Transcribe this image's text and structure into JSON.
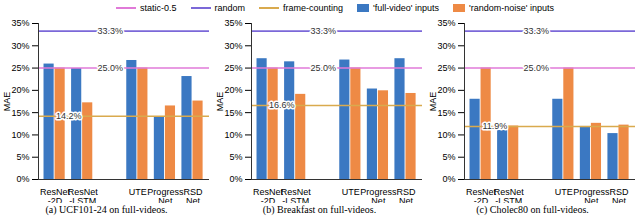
{
  "chart_data": [
    {
      "type": "bar",
      "title": "(a) UCF101-24 on full-videos.",
      "y_label": "MAE",
      "categories": [
        "ResNet\n-2D",
        "ResNet\n-LSTM",
        null,
        "UTE",
        "Progress\nNet",
        "RSD\nNet"
      ],
      "series": [
        {
          "name": "'full-video' inputs",
          "color": "#3b78c2",
          "values": [
            25.9,
            24.9,
            null,
            26.7,
            14.0,
            23.1
          ]
        },
        {
          "name": "'random-noise' inputs",
          "color": "#ee8a45",
          "values": [
            25.0,
            17.2,
            null,
            25.0,
            16.5,
            17.6
          ]
        }
      ],
      "reference_lines": [
        {
          "name": "static-0.5",
          "value": 25.0,
          "value_label": "25.0%",
          "color": "#e07ad8"
        },
        {
          "name": "random",
          "value": 33.3,
          "value_label": "33.3%",
          "color": "#7b68d8"
        },
        {
          "name": "frame-counting",
          "value": 14.2,
          "value_label": "14.2%",
          "color": "#d9aa4e"
        }
      ],
      "ylim": [
        0,
        35
      ],
      "yticks": [
        {
          "value": 0,
          "label": "0%"
        },
        {
          "value": 5,
          "label": "5%"
        },
        {
          "value": 10,
          "label": "10%"
        },
        {
          "value": 15,
          "label": "15%"
        },
        {
          "value": 20,
          "label": "20%"
        },
        {
          "value": 25,
          "label": "25%"
        },
        {
          "value": 30,
          "label": "30%"
        },
        {
          "value": 35,
          "label": "35%"
        }
      ],
      "grid": false,
      "legend": "top"
    },
    {
      "type": "bar",
      "title": "(b) Breakfast on full-videos.",
      "y_label": "MAE",
      "categories": [
        "ResNet\n-2D",
        "ResNet\n-LSTM",
        null,
        "UTE",
        "Progress\nNet",
        "RSD\nNet"
      ],
      "series": [
        {
          "name": "'full-video' inputs",
          "color": "#3b78c2",
          "values": [
            27.1,
            26.4,
            null,
            26.8,
            20.3,
            27.1
          ]
        },
        {
          "name": "'random-noise' inputs",
          "color": "#ee8a45",
          "values": [
            25.0,
            19.1,
            null,
            25.0,
            19.9,
            19.3
          ]
        }
      ],
      "reference_lines": [
        {
          "name": "static-0.5",
          "value": 25.0,
          "value_label": "25.0%",
          "color": "#e07ad8"
        },
        {
          "name": "random",
          "value": 33.3,
          "value_label": "33.3%",
          "color": "#7b68d8"
        },
        {
          "name": "frame-counting",
          "value": 16.6,
          "value_label": "16.6%",
          "color": "#d9aa4e"
        }
      ],
      "ylim": [
        0,
        35
      ],
      "yticks": [
        {
          "value": 0,
          "label": "0%"
        },
        {
          "value": 5,
          "label": "5%"
        },
        {
          "value": 10,
          "label": "10%"
        },
        {
          "value": 15,
          "label": "15%"
        },
        {
          "value": 20,
          "label": "20%"
        },
        {
          "value": 25,
          "label": "25%"
        },
        {
          "value": 30,
          "label": "30%"
        },
        {
          "value": 35,
          "label": "35%"
        }
      ],
      "grid": false,
      "legend": "top"
    },
    {
      "type": "bar",
      "title": "(c) Cholec80 on full-videos.",
      "y_label": "MAE",
      "categories": [
        "ResNet\n-2D",
        "ResNet\n-LSTM",
        null,
        "UTE",
        "Progress\nNet",
        "RSD\nNet"
      ],
      "series": [
        {
          "name": "'full-video' inputs",
          "color": "#3b78c2",
          "values": [
            18.0,
            11.0,
            null,
            18.0,
            11.9,
            10.3
          ]
        },
        {
          "name": "'random-noise' inputs",
          "color": "#ee8a45",
          "values": [
            25.0,
            12.0,
            null,
            25.0,
            12.6,
            12.2
          ]
        }
      ],
      "reference_lines": [
        {
          "name": "static-0.5",
          "value": 25.0,
          "value_label": "25.0%",
          "color": "#e07ad8"
        },
        {
          "name": "random",
          "value": 33.3,
          "value_label": "33.3%",
          "color": "#7b68d8"
        },
        {
          "name": "frame-counting",
          "value": 11.9,
          "value_label": "11.9%",
          "color": "#d9aa4e"
        }
      ],
      "ylim": [
        0,
        35
      ],
      "yticks": [
        {
          "value": 0,
          "label": "0%"
        },
        {
          "value": 5,
          "label": "5%"
        },
        {
          "value": 10,
          "label": "10%"
        },
        {
          "value": 15,
          "label": "15%"
        },
        {
          "value": 20,
          "label": "20%"
        },
        {
          "value": 25,
          "label": "25%"
        },
        {
          "value": 30,
          "label": "30%"
        },
        {
          "value": 35,
          "label": "35%"
        }
      ],
      "grid": false,
      "legend": "top"
    }
  ]
}
